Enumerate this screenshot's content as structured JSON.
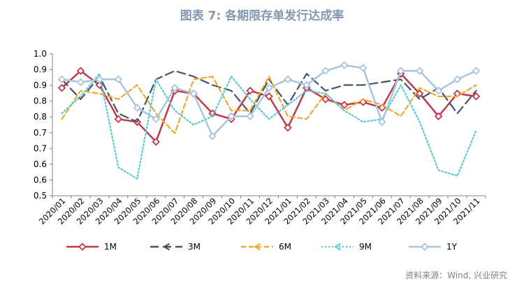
{
  "title": "图表 7: 各期限存单发行达成率",
  "source": "资料来源：Wind, 兴业研究",
  "chart_data": {
    "type": "line",
    "title": "图表 7: 各期限存单发行达成率",
    "y_tick_labels": [
      "1.0",
      "0.9",
      "0.9",
      "0.8",
      "0.8",
      "0.7",
      "0.7",
      "0.6",
      "0.6",
      "0.5"
    ],
    "ylim": [
      0.5,
      1.0
    ],
    "categories": [
      "2020/01",
      "2020/02",
      "2020/03",
      "2020/04",
      "2020/05",
      "2020/06",
      "2020/07",
      "2020/08",
      "2020/09",
      "2020/10",
      "2020/11",
      "2020/12",
      "2021/01",
      "2021/02",
      "2021/03",
      "2021/04",
      "2021/05",
      "2021/06",
      "2021/07",
      "2021/08",
      "2021/09",
      "2021/10",
      "2021/11"
    ],
    "legend_position": "bottom",
    "grid": false,
    "series": [
      {
        "name": "1M",
        "color": "#c0394b",
        "style": "solid",
        "marker": "diamond",
        "values": [
          0.88,
          0.94,
          0.89,
          0.77,
          0.76,
          0.69,
          0.87,
          0.86,
          0.79,
          0.77,
          0.87,
          0.85,
          0.74,
          0.88,
          0.84,
          0.82,
          0.83,
          0.81,
          0.93,
          0.86,
          0.78,
          0.86,
          0.85
        ]
      },
      {
        "name": "3M",
        "color": "#44546a",
        "style": "dash-long",
        "marker": "chevron",
        "values": [
          0.91,
          0.84,
          0.92,
          0.79,
          0.76,
          0.91,
          0.94,
          0.92,
          0.89,
          0.87,
          0.79,
          0.91,
          0.82,
          0.93,
          0.87,
          0.89,
          0.89,
          0.9,
          0.91,
          0.84,
          0.88,
          0.79,
          0.87
        ]
      },
      {
        "name": "6M",
        "color": "#f0a830",
        "style": "dash",
        "marker": "chevron",
        "values": [
          0.77,
          0.87,
          0.86,
          0.84,
          0.89,
          0.79,
          0.72,
          0.91,
          0.92,
          0.8,
          0.8,
          0.92,
          0.78,
          0.77,
          0.86,
          0.8,
          0.84,
          0.82,
          0.78,
          0.88,
          0.85,
          0.85,
          0.89
        ]
      },
      {
        "name": "9M",
        "color": "#5bc8d6",
        "style": "dot",
        "marker": "chevron",
        "values": [
          0.79,
          0.85,
          0.93,
          0.6,
          0.56,
          0.91,
          0.8,
          0.75,
          0.78,
          0.92,
          0.84,
          0.77,
          0.82,
          0.87,
          0.86,
          0.8,
          0.76,
          0.77,
          0.89,
          0.76,
          0.59,
          0.57,
          0.73
        ]
      },
      {
        "name": "1Y",
        "color": "#a8c4de",
        "style": "solid",
        "marker": "diamond",
        "values": [
          0.91,
          0.9,
          0.91,
          0.91,
          0.81,
          0.77,
          0.88,
          0.86,
          0.71,
          0.78,
          0.78,
          0.88,
          0.91,
          0.89,
          0.94,
          0.96,
          0.95,
          0.76,
          0.94,
          0.94,
          0.87,
          0.91,
          0.94
        ]
      }
    ]
  }
}
